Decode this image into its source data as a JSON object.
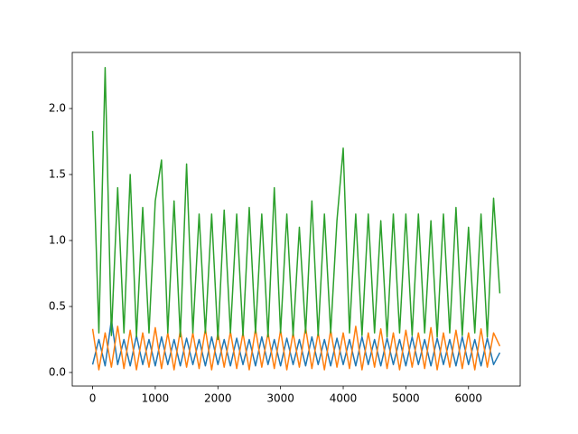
{
  "chart_data": {
    "type": "line",
    "x": [
      0,
      100,
      200,
      300,
      400,
      500,
      600,
      700,
      800,
      900,
      1000,
      1100,
      1200,
      1300,
      1400,
      1500,
      1600,
      1700,
      1800,
      1900,
      2000,
      2100,
      2200,
      2300,
      2400,
      2500,
      2600,
      2700,
      2800,
      2900,
      3000,
      3100,
      3200,
      3300,
      3400,
      3500,
      3600,
      3700,
      3800,
      3900,
      4000,
      4100,
      4200,
      4300,
      4400,
      4500,
      4600,
      4700,
      4800,
      4900,
      5000,
      5100,
      5200,
      5300,
      5400,
      5500,
      5600,
      5700,
      5800,
      5900,
      6000,
      6100,
      6200,
      6300,
      6400,
      6500
    ],
    "series": [
      {
        "color": "#1f77b4",
        "values": [
          0.06,
          0.25,
          0.05,
          0.4,
          0.06,
          0.25,
          0.05,
          0.28,
          0.06,
          0.25,
          0.05,
          0.27,
          0.06,
          0.25,
          0.05,
          0.26,
          0.06,
          0.25,
          0.05,
          0.27,
          0.06,
          0.25,
          0.05,
          0.26,
          0.06,
          0.25,
          0.05,
          0.27,
          0.06,
          0.25,
          0.05,
          0.26,
          0.06,
          0.25,
          0.05,
          0.27,
          0.06,
          0.25,
          0.05,
          0.26,
          0.06,
          0.25,
          0.05,
          0.27,
          0.06,
          0.25,
          0.05,
          0.26,
          0.06,
          0.25,
          0.05,
          0.27,
          0.06,
          0.25,
          0.05,
          0.26,
          0.06,
          0.25,
          0.05,
          0.27,
          0.06,
          0.25,
          0.05,
          0.26,
          0.06,
          0.15
        ]
      },
      {
        "color": "#ff7f0e",
        "values": [
          0.33,
          0.02,
          0.3,
          0.04,
          0.35,
          0.03,
          0.32,
          0.02,
          0.3,
          0.04,
          0.34,
          0.03,
          0.3,
          0.02,
          0.32,
          0.04,
          0.3,
          0.03,
          0.33,
          0.02,
          0.3,
          0.04,
          0.31,
          0.03,
          0.3,
          0.02,
          0.33,
          0.04,
          0.3,
          0.03,
          0.32,
          0.02,
          0.3,
          0.04,
          0.34,
          0.03,
          0.3,
          0.02,
          0.32,
          0.04,
          0.3,
          0.03,
          0.35,
          0.02,
          0.3,
          0.04,
          0.33,
          0.03,
          0.3,
          0.02,
          0.32,
          0.04,
          0.3,
          0.03,
          0.34,
          0.02,
          0.3,
          0.04,
          0.32,
          0.03,
          0.3,
          0.02,
          0.33,
          0.04,
          0.3,
          0.2
        ]
      },
      {
        "color": "#2ca02c",
        "values": [
          1.83,
          0.3,
          2.31,
          0.28,
          1.4,
          0.3,
          1.5,
          0.27,
          1.25,
          0.3,
          1.3,
          1.61,
          0.3,
          1.3,
          0.27,
          1.58,
          0.3,
          1.2,
          0.3,
          1.2,
          0.25,
          1.23,
          0.3,
          1.2,
          0.28,
          1.25,
          0.3,
          1.2,
          0.27,
          1.4,
          0.3,
          1.2,
          0.28,
          1.1,
          0.3,
          1.3,
          0.28,
          1.2,
          0.3,
          1.15,
          1.7,
          0.3,
          1.2,
          0.28,
          1.2,
          0.3,
          1.15,
          0.27,
          1.2,
          0.3,
          1.2,
          0.28,
          1.2,
          0.3,
          1.15,
          0.27,
          1.2,
          0.3,
          1.25,
          0.28,
          1.1,
          0.3,
          1.2,
          0.27,
          1.32,
          0.6
        ]
      }
    ],
    "xlim": [
      -325,
      6825
    ],
    "xticks": [
      0,
      1000,
      2000,
      3000,
      4000,
      5000,
      6000
    ],
    "ylim": [
      -0.103,
      2.425
    ],
    "yticks": [
      {
        "value": 0,
        "label": "0.0"
      },
      0.5,
      {
        "value": 1,
        "label": "1.0"
      },
      1.5,
      {
        "value": 2,
        "label": "2.0"
      }
    ]
  }
}
